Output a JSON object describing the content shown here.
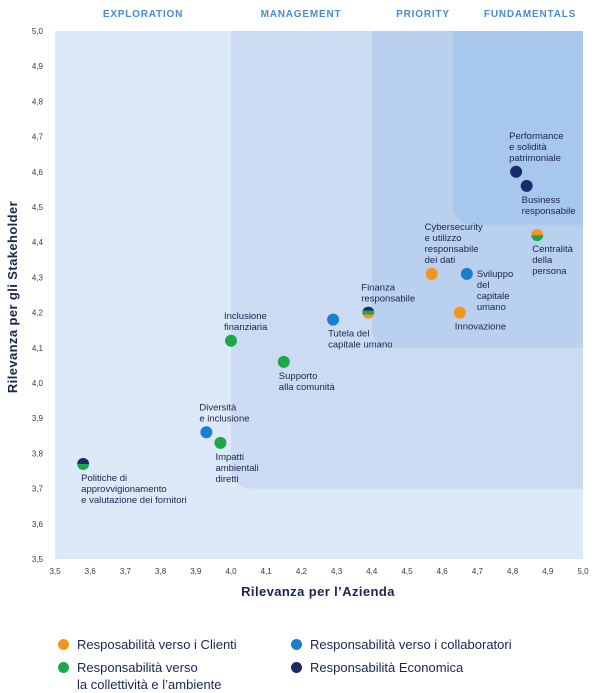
{
  "chart_data": {
    "type": "scatter",
    "title": "",
    "xlabel": "Rilevanza per l’Azienda",
    "ylabel": "Rilevanza per gli Stakeholder",
    "xlim": [
      3.5,
      5.0
    ],
    "ylim": [
      3.5,
      5.0
    ],
    "xticks": [
      "3,5",
      "3,6",
      "3,7",
      "3,8",
      "3,9",
      "4,0",
      "4,1",
      "4,2",
      "4,3",
      "4,4",
      "4,5",
      "4,6",
      "4,7",
      "4,8",
      "4,9",
      "5,0"
    ],
    "yticks": [
      "3,5",
      "3,6",
      "3,7",
      "3,8",
      "3,9",
      "4,0",
      "4,1",
      "4,2",
      "4,3",
      "4,4",
      "4,5",
      "4,6",
      "4,7",
      "4,8",
      "4,9",
      "5,0"
    ],
    "zones": [
      {
        "name": "EXPLORATION",
        "x_from": 3.5,
        "y_from": 3.5,
        "color": "#dce9f8"
      },
      {
        "name": "MANAGEMENT",
        "x_from": 4.0,
        "y_from": 3.7,
        "color": "#cbdcf2"
      },
      {
        "name": "PRIORITY",
        "x_from": 4.4,
        "y_from": 4.1,
        "color": "#b9d0ee"
      },
      {
        "name": "FUNDAMENTALS",
        "x_from": 4.63,
        "y_from": 4.45,
        "color": "#a7c7ec"
      }
    ],
    "legend": [
      {
        "key": "clienti",
        "label": "Resposabilità verso i Clienti",
        "color": "#f7941d"
      },
      {
        "key": "collaboratori",
        "label": "Responsabilità verso i collaboratori",
        "color": "#1a7fd0"
      },
      {
        "key": "ambiente",
        "label": "Responsabilità verso\nla collettività e l’ambiente",
        "color": "#1ea64a"
      },
      {
        "key": "economica",
        "label": "Responsabilità Economica",
        "color": "#1b2a6b"
      }
    ],
    "points": [
      {
        "label": "Politiche di\napprovvigionamento\ne valutazione dei fornitori",
        "x": 3.58,
        "y": 3.77,
        "cats": [
          "economica",
          "ambiente"
        ],
        "anchor": "below-right"
      },
      {
        "label": "Diversità\ne inclusione",
        "x": 3.93,
        "y": 3.86,
        "cats": [
          "collaboratori"
        ],
        "anchor": "above"
      },
      {
        "label": "Impatti\nambientali\ndiretti",
        "x": 3.97,
        "y": 3.83,
        "cats": [
          "ambiente"
        ],
        "anchor": "below"
      },
      {
        "label": "Inclusione\nfinanziaria",
        "x": 4.0,
        "y": 4.12,
        "cats": [
          "ambiente"
        ],
        "anchor": "above"
      },
      {
        "label": "Supporto\nalla comunità",
        "x": 4.15,
        "y": 4.06,
        "cats": [
          "ambiente"
        ],
        "anchor": "below"
      },
      {
        "label": "Tutela del\ncapitale umano",
        "x": 4.29,
        "y": 4.18,
        "cats": [
          "collaboratori"
        ],
        "anchor": "below"
      },
      {
        "label": "Finanza\nresponsabile",
        "x": 4.39,
        "y": 4.2,
        "cats": [
          "economica",
          "ambiente",
          "clienti"
        ],
        "anchor": "above"
      },
      {
        "label": "Cybersecurity\ne utilizzo\nresponsabile\ndei dati",
        "x": 4.57,
        "y": 4.31,
        "cats": [
          "clienti"
        ],
        "anchor": "above"
      },
      {
        "label": "Innovazione",
        "x": 4.65,
        "y": 4.2,
        "cats": [
          "clienti"
        ],
        "anchor": "below"
      },
      {
        "label": "Sviluppo\ndel\ncapitale\numano",
        "x": 4.67,
        "y": 4.31,
        "cats": [
          "collaboratori"
        ],
        "anchor": "right"
      },
      {
        "label": "Performance\ne solidità\npatrimoniale",
        "x": 4.81,
        "y": 4.6,
        "cats": [
          "economica"
        ],
        "anchor": "above"
      },
      {
        "label": "Business\nresponsabile",
        "x": 4.84,
        "y": 4.56,
        "cats": [
          "economica"
        ],
        "anchor": "below"
      },
      {
        "label": "Centralità\ndella\npersona",
        "x": 4.87,
        "y": 4.42,
        "cats": [
          "clienti",
          "ambiente"
        ],
        "anchor": "below"
      }
    ]
  }
}
